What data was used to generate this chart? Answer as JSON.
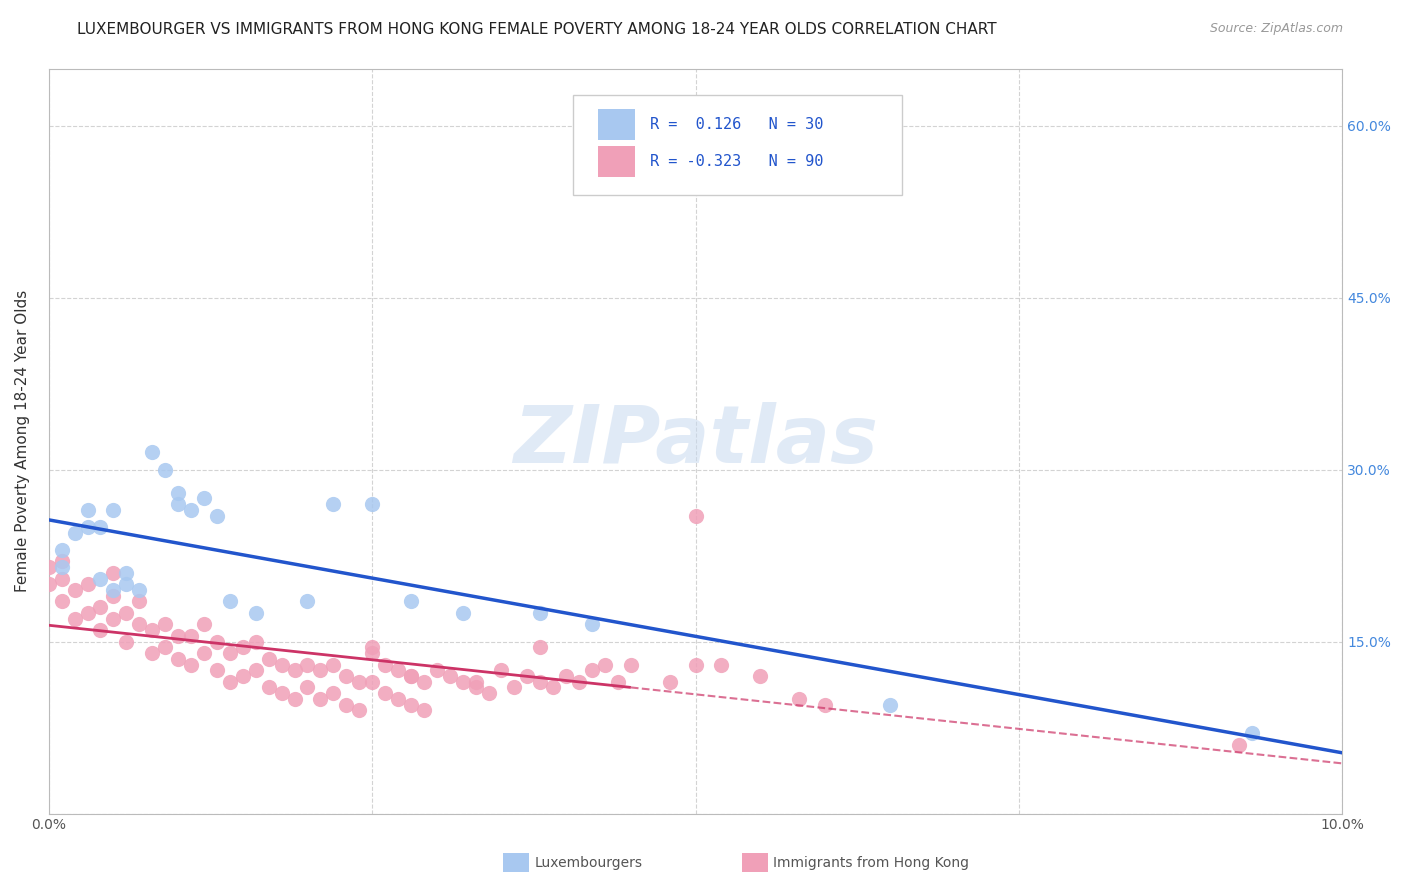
{
  "title": "LUXEMBOURGER VS IMMIGRANTS FROM HONG KONG FEMALE POVERTY AMONG 18-24 YEAR OLDS CORRELATION CHART",
  "source": "Source: ZipAtlas.com",
  "ylabel": "Female Poverty Among 18-24 Year Olds",
  "xlim": [
    0.0,
    0.1
  ],
  "ylim": [
    0.0,
    0.65
  ],
  "background_color": "#ffffff",
  "grid_color": "#c8c8c8",
  "watermark": "ZIPatlas",
  "lux_color": "#a8c8f0",
  "hk_color": "#f0a0b8",
  "lux_line_color": "#2255cc",
  "hk_line_color": "#cc3366",
  "lux_R": 0.126,
  "lux_N": 30,
  "hk_R": -0.323,
  "hk_N": 90,
  "legend_text_color": "#2255cc",
  "title_fontsize": 11,
  "axis_label_fontsize": 11,
  "tick_fontsize": 10,
  "right_tick_color": "#4488dd",
  "lux_data_x": [
    0.001,
    0.001,
    0.002,
    0.003,
    0.003,
    0.004,
    0.004,
    0.005,
    0.005,
    0.006,
    0.006,
    0.007,
    0.008,
    0.009,
    0.01,
    0.01,
    0.011,
    0.012,
    0.013,
    0.014,
    0.016,
    0.02,
    0.022,
    0.025,
    0.028,
    0.032,
    0.038,
    0.042,
    0.065,
    0.093
  ],
  "lux_data_y": [
    0.215,
    0.23,
    0.245,
    0.265,
    0.25,
    0.205,
    0.25,
    0.195,
    0.265,
    0.21,
    0.2,
    0.195,
    0.315,
    0.3,
    0.28,
    0.27,
    0.265,
    0.275,
    0.26,
    0.185,
    0.175,
    0.185,
    0.27,
    0.27,
    0.185,
    0.175,
    0.175,
    0.165,
    0.095,
    0.07
  ],
  "hk_data_x": [
    0.0,
    0.0,
    0.001,
    0.001,
    0.001,
    0.002,
    0.002,
    0.003,
    0.003,
    0.004,
    0.004,
    0.005,
    0.005,
    0.005,
    0.006,
    0.006,
    0.007,
    0.007,
    0.008,
    0.008,
    0.009,
    0.009,
    0.01,
    0.01,
    0.011,
    0.011,
    0.012,
    0.012,
    0.013,
    0.013,
    0.014,
    0.014,
    0.015,
    0.015,
    0.016,
    0.016,
    0.017,
    0.017,
    0.018,
    0.018,
    0.019,
    0.019,
    0.02,
    0.02,
    0.021,
    0.021,
    0.022,
    0.022,
    0.023,
    0.023,
    0.024,
    0.024,
    0.025,
    0.025,
    0.026,
    0.026,
    0.027,
    0.027,
    0.028,
    0.028,
    0.029,
    0.029,
    0.03,
    0.031,
    0.032,
    0.033,
    0.034,
    0.035,
    0.036,
    0.037,
    0.038,
    0.039,
    0.04,
    0.041,
    0.042,
    0.043,
    0.044,
    0.045,
    0.048,
    0.05,
    0.052,
    0.055,
    0.058,
    0.06,
    0.038,
    0.025,
    0.028,
    0.033,
    0.05,
    0.092
  ],
  "hk_data_y": [
    0.215,
    0.2,
    0.22,
    0.205,
    0.185,
    0.195,
    0.17,
    0.2,
    0.175,
    0.18,
    0.16,
    0.21,
    0.19,
    0.17,
    0.175,
    0.15,
    0.185,
    0.165,
    0.16,
    0.14,
    0.165,
    0.145,
    0.155,
    0.135,
    0.155,
    0.13,
    0.165,
    0.14,
    0.15,
    0.125,
    0.14,
    0.115,
    0.145,
    0.12,
    0.15,
    0.125,
    0.135,
    0.11,
    0.13,
    0.105,
    0.125,
    0.1,
    0.13,
    0.11,
    0.125,
    0.1,
    0.13,
    0.105,
    0.12,
    0.095,
    0.115,
    0.09,
    0.14,
    0.115,
    0.13,
    0.105,
    0.125,
    0.1,
    0.12,
    0.095,
    0.115,
    0.09,
    0.125,
    0.12,
    0.115,
    0.11,
    0.105,
    0.125,
    0.11,
    0.12,
    0.115,
    0.11,
    0.12,
    0.115,
    0.125,
    0.13,
    0.115,
    0.13,
    0.115,
    0.13,
    0.13,
    0.12,
    0.1,
    0.095,
    0.145,
    0.145,
    0.12,
    0.115,
    0.26,
    0.06
  ]
}
